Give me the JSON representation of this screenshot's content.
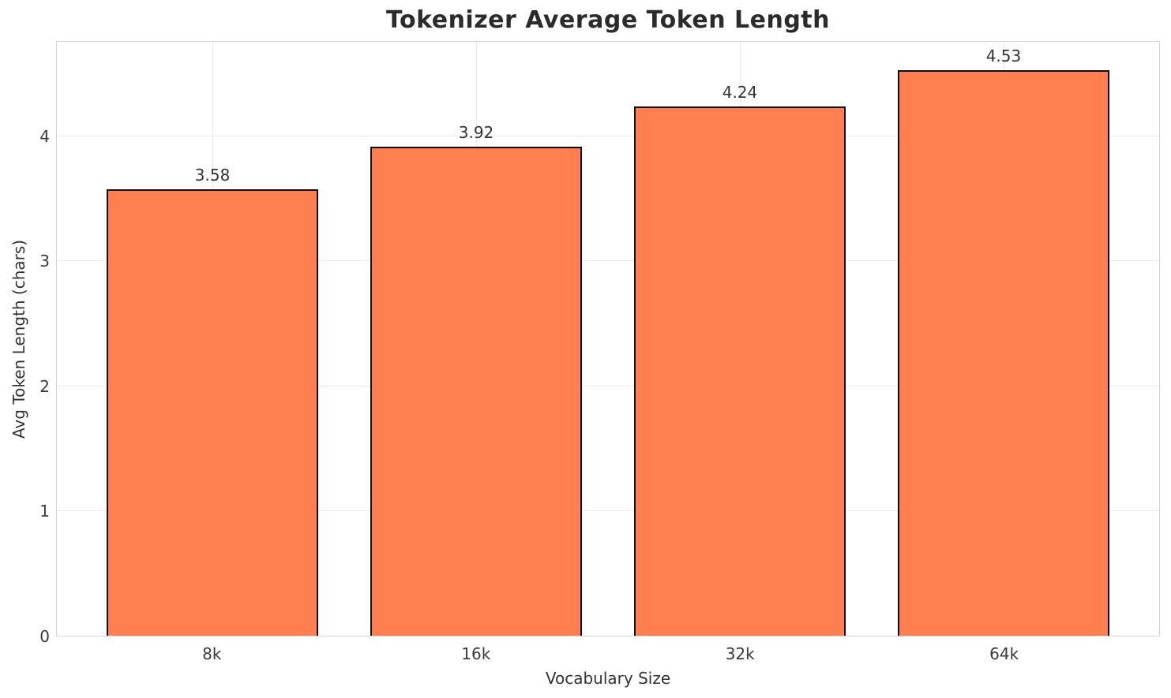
{
  "chart_data": {
    "type": "bar",
    "title": "Tokenizer Average Token Length",
    "xlabel": "Vocabulary Size",
    "ylabel": "Avg Token Length (chars)",
    "categories": [
      "8k",
      "16k",
      "32k",
      "64k"
    ],
    "values": [
      3.58,
      3.92,
      4.24,
      4.53
    ],
    "value_labels": [
      "3.58",
      "3.92",
      "4.24",
      "4.53"
    ],
    "y_ticks": [
      0,
      1,
      2,
      3,
      4
    ],
    "ylim": [
      0,
      4.76
    ],
    "xlim": [
      -0.59,
      3.59
    ],
    "bar_width": 0.8,
    "grid": "both",
    "legend": "none",
    "bar_color": "#ff7f50",
    "bar_edge_color": "#0d0d0d",
    "grid_color": "#e9e9e9",
    "text_color": "#333333"
  }
}
